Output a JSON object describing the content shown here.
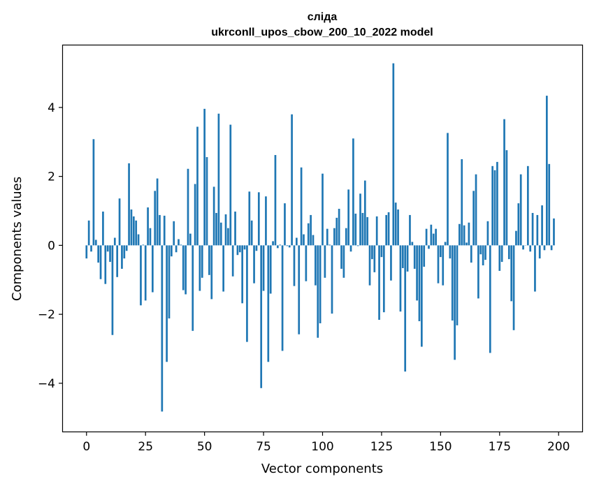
{
  "chart_data": {
    "type": "bar",
    "title_lines": [
      "слiда",
      "ukrconll_upos_cbow_200_10_2022 model"
    ],
    "xlabel": "Vector components",
    "ylabel": "Components values",
    "xlim": [
      -10,
      210
    ],
    "ylim": [
      -5.4,
      5.8
    ],
    "xticks": [
      0,
      25,
      50,
      75,
      100,
      125,
      150,
      175,
      200
    ],
    "yticks": [
      -4,
      -2,
      0,
      2,
      4
    ],
    "ytick_labels": [
      "−4",
      "−2",
      "0",
      "2",
      "4"
    ],
    "bar_color": "#1f77b4",
    "grid": false,
    "values": [
      -0.38,
      0.72,
      -0.18,
      3.08,
      0.16,
      -0.5,
      -0.98,
      0.98,
      -1.12,
      -0.18,
      -0.48,
      -2.6,
      0.22,
      -0.92,
      1.36,
      -0.68,
      -0.38,
      -0.16,
      2.38,
      1.04,
      0.84,
      0.72,
      0.32,
      -1.74,
      0.02,
      -1.6,
      1.1,
      0.5,
      -1.36,
      1.58,
      1.94,
      0.88,
      -4.82,
      0.86,
      -3.38,
      -2.12,
      -0.32,
      0.7,
      -0.2,
      0.18,
      0.02,
      -1.3,
      -1.42,
      2.22,
      0.34,
      -2.48,
      1.78,
      3.44,
      -1.32,
      -0.94,
      3.96,
      2.56,
      -0.86,
      -1.56,
      1.7,
      0.94,
      3.82,
      0.66,
      -1.34,
      0.9,
      0.5,
      3.5,
      -0.9,
      0.98,
      -0.28,
      -0.2,
      -1.68,
      -0.12,
      -2.8,
      1.56,
      0.72,
      -1.1,
      -0.16,
      1.54,
      -4.14,
      -1.32,
      1.42,
      -3.38,
      -1.4,
      0.12,
      2.62,
      -0.08,
      0.02,
      -3.06,
      1.22,
      -0.02,
      -0.06,
      3.8,
      -1.18,
      0.22,
      -2.58,
      2.26,
      0.32,
      -1.04,
      0.64,
      0.88,
      0.3,
      -1.16,
      -2.68,
      -2.26,
      2.08,
      -0.94,
      0.48,
      0.02,
      -1.98,
      0.5,
      0.8,
      1.06,
      -0.68,
      -0.94,
      0.5,
      1.62,
      -0.18,
      3.1,
      0.92,
      -0.02,
      1.5,
      0.94,
      1.88,
      0.82,
      -1.16,
      -0.4,
      -0.78,
      0.84,
      -2.16,
      -0.34,
      -1.94,
      0.88,
      0.96,
      -1.02,
      5.28,
      1.24,
      1.04,
      -1.92,
      -0.66,
      -3.66,
      -0.76,
      0.88,
      0.1,
      -0.68,
      -1.6,
      -2.2,
      -2.94,
      -0.62,
      0.48,
      -0.1,
      0.6,
      0.34,
      0.48,
      -1.1,
      -0.34,
      -1.16,
      0.1,
      3.26,
      -0.38,
      -2.18,
      -3.32,
      -2.32,
      0.62,
      2.5,
      0.58,
      0.08,
      0.66,
      -0.5,
      1.58,
      2.06,
      -1.54,
      -0.26,
      -0.58,
      -0.42,
      0.7,
      -3.12,
      2.3,
      2.18,
      2.42,
      -0.74,
      -0.48,
      3.66,
      2.76,
      -0.4,
      -1.62,
      -2.46,
      0.42,
      1.22,
      2.06,
      -0.12,
      0.0,
      2.3,
      -0.18,
      0.94,
      -1.34,
      0.88,
      -0.38,
      1.16,
      -0.14,
      4.34,
      2.36,
      -0.14,
      0.78
    ]
  }
}
